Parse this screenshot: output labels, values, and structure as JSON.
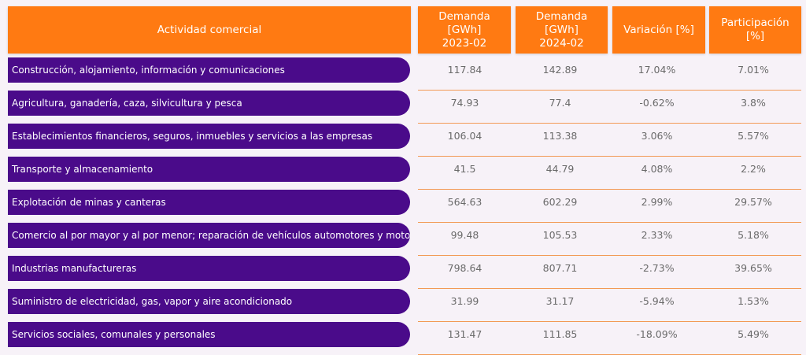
{
  "header": {
    "activity": "Actividad comercial",
    "demand_prev_line1": "Demanda [GWh]",
    "demand_prev_line2": "2023-02",
    "demand_curr_line1": "Demanda [GWh]",
    "demand_curr_line2": "2024-02",
    "variation": "Variación [%]",
    "participation": "Participación [%]"
  },
  "rows": [
    {
      "activity": "Construcción, alojamiento, información y comunicaciones",
      "d2023": "117.84",
      "d2024": "142.89",
      "variation": "17.04%",
      "participation": "7.01%"
    },
    {
      "activity": "Agricultura, ganadería, caza, silvicultura y pesca",
      "d2023": "74.93",
      "d2024": "77.4",
      "variation": "-0.62%",
      "participation": "3.8%"
    },
    {
      "activity": "Establecimientos financieros, seguros, inmuebles y servicios a las empresas",
      "d2023": "106.04",
      "d2024": "113.38",
      "variation": "3.06%",
      "participation": "5.57%"
    },
    {
      "activity": "Transporte y almacenamiento",
      "d2023": "41.5",
      "d2024": "44.79",
      "variation": "4.08%",
      "participation": "2.2%"
    },
    {
      "activity": "Explotación de minas y canteras",
      "d2023": "564.63",
      "d2024": "602.29",
      "variation": "2.99%",
      "participation": "29.57%"
    },
    {
      "activity": "Comercio al por mayor y al por menor; reparación de vehículos automotores y motocicletas",
      "d2023": "99.48",
      "d2024": "105.53",
      "variation": "2.33%",
      "participation": "5.18%"
    },
    {
      "activity": "Industrias manufactureras",
      "d2023": "798.64",
      "d2024": "807.71",
      "variation": "-2.73%",
      "participation": "39.65%"
    },
    {
      "activity": "Suministro de electricidad, gas, vapor y aire acondicionado",
      "d2023": "31.99",
      "d2024": "31.17",
      "variation": "-5.94%",
      "participation": "1.53%"
    },
    {
      "activity": "Servicios sociales, comunales y personales",
      "d2023": "131.47",
      "d2024": "111.85",
      "variation": "-18.09%",
      "participation": "5.49%"
    }
  ],
  "colors": {
    "header_bg": "#ff7a12",
    "label_bg": "#4a0b8a",
    "separator": "#f29a55"
  }
}
